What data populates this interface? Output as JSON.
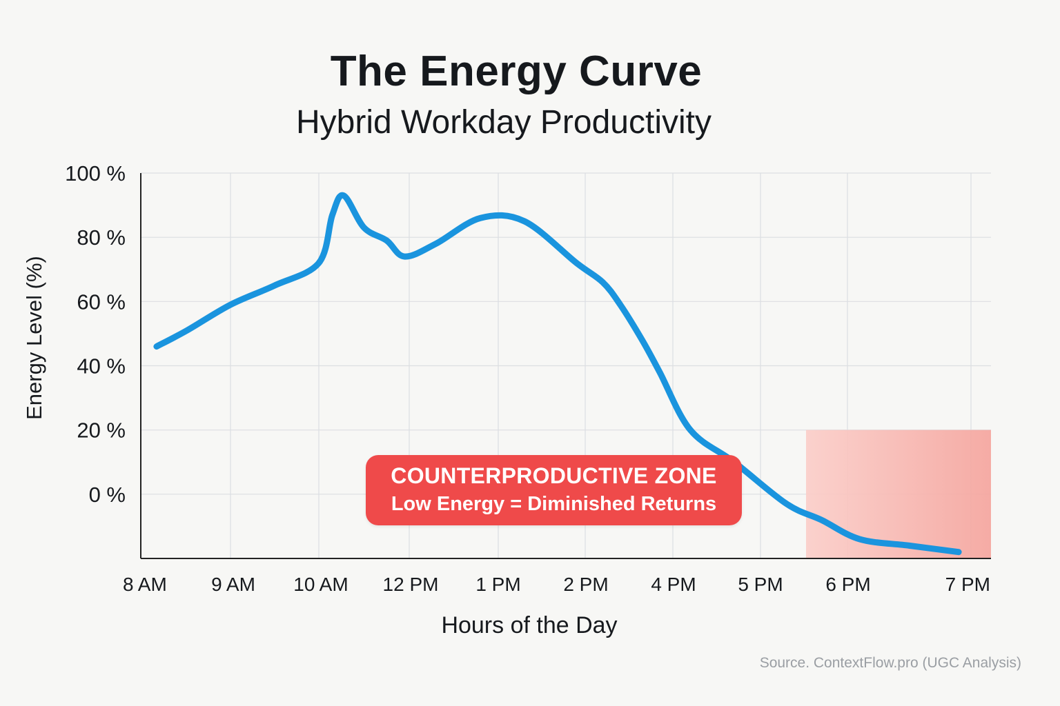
{
  "title": "The Energy Curve",
  "subtitle": "Hybrid Workday Productivity",
  "source": "Source. ContextFlow.pro (UGC Analysis)",
  "annotation": {
    "title": "COUNTERPRODUCTIVE ZONE",
    "subtitle": "Low Energy = Diminished Returns",
    "color": "#ef4a4a"
  },
  "chart_data": {
    "type": "line",
    "title": "The Energy Curve",
    "subtitle": "Hybrid Workday Productivity",
    "xlabel": "Hours of the Day",
    "ylabel": "Energy Level (%)",
    "categories": [
      "8 AM",
      "9 AM",
      "10 AM",
      "12 PM",
      "1 PM",
      "2 PM",
      "4 PM",
      "5 PM",
      "6 PM",
      "7 PM"
    ],
    "yticks": [
      100,
      80,
      60,
      40,
      20,
      0
    ],
    "ytick_labels": [
      "100 %",
      "80 %",
      "60 %",
      "40 %",
      "20 %",
      "0 %"
    ],
    "ylim": [
      -20,
      100
    ],
    "grid": true,
    "line_color": "#1a94de",
    "series": [
      {
        "x": [
          8.15,
          8.5,
          9.0,
          9.5,
          10.0,
          10.3,
          10.55,
          11.0,
          11.5,
          11.9,
          12.3,
          12.8,
          13.3,
          13.9,
          14.4,
          14.8,
          15.3,
          15.7,
          16.2,
          16.7,
          17.3,
          17.7,
          18.1,
          18.5,
          18.9
        ],
        "y": [
          46,
          51,
          59,
          65,
          72,
          87,
          93,
          83,
          79,
          74,
          78,
          86,
          85,
          72,
          66,
          59,
          48,
          38,
          20,
          10,
          -3,
          -8,
          -14,
          -16,
          -18
        ]
      }
    ],
    "shaded_zone": {
      "label": "COUNTERPRODUCTIVE ZONE",
      "x_start": 18.0,
      "x_end": 19.0,
      "y_top": 20,
      "color": "#f5a39c"
    }
  }
}
